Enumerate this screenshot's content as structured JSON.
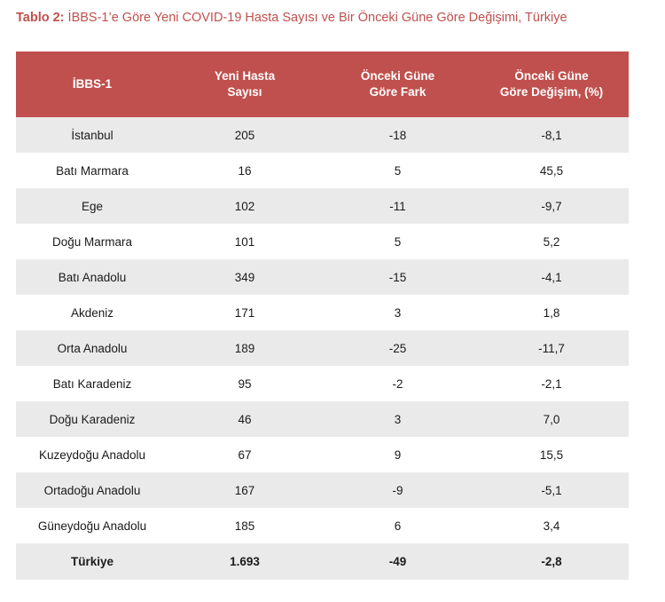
{
  "caption": {
    "label": "Tablo 2:",
    "text": " İBBS-1’e Göre Yeni COVID-19 Hasta Sayısı ve Bir Önceki Güne Göre Değişimi, Türkiye"
  },
  "table": {
    "headers": [
      [
        "İBBS-1"
      ],
      [
        "Yeni Hasta",
        "Sayısı"
      ],
      [
        "Önceki Güne",
        "Göre Fark"
      ],
      [
        "Önceki Güne",
        "Göre Değişim, (%)"
      ]
    ],
    "rows": [
      [
        "İstanbul",
        "205",
        "-18",
        "-8,1"
      ],
      [
        "Batı Marmara",
        "16",
        "5",
        "45,5"
      ],
      [
        "Ege",
        "102",
        "-11",
        "-9,7"
      ],
      [
        "Doğu Marmara",
        "101",
        "5",
        "5,2"
      ],
      [
        "Batı Anadolu",
        "349",
        "-15",
        "-4,1"
      ],
      [
        "Akdeniz",
        "171",
        "3",
        "1,8"
      ],
      [
        "Orta Anadolu",
        "189",
        "-25",
        "-11,7"
      ],
      [
        "Batı Karadeniz",
        "95",
        "-2",
        "-2,1"
      ],
      [
        "Doğu Karadeniz",
        "46",
        "3",
        "7,0"
      ],
      [
        "Kuzeydoğu Anadolu",
        "67",
        "9",
        "15,5"
      ],
      [
        "Ortadoğu Anadolu",
        "167",
        "-9",
        "-5,1"
      ],
      [
        "Güneydoğu Anadolu",
        "185",
        "6",
        "3,4"
      ]
    ],
    "total": [
      "Türkiye",
      "1.693",
      "-49",
      "-2,8"
    ]
  },
  "colors": {
    "accent": "#c0504d",
    "stripe": "#eaeaea"
  }
}
